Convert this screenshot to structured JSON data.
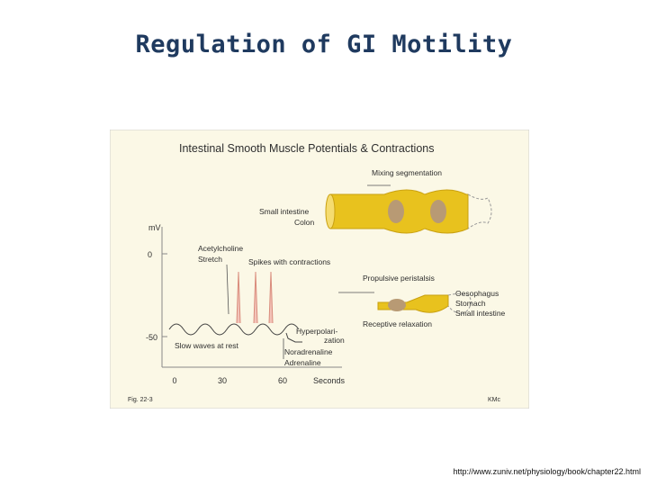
{
  "slide": {
    "title": "Regulation of GI Motility",
    "source_url": "http://www.zuniv.net/physiology/book/chapter22.html"
  },
  "figure": {
    "title": "Intestinal Smooth  Muscle Potentials & Contractions",
    "fig_label": "Fig. 22-3",
    "credit": "KMc",
    "y_axis_unit": "mV",
    "y_ticks": [
      "0",
      "-50"
    ],
    "x_ticks": [
      "0",
      "30",
      "60"
    ],
    "x_axis_label": "Seconds",
    "labels": {
      "acetylcholine": "Acetylcholine",
      "stretch": "Stretch",
      "spikes": "Spikes with contractions",
      "slow_waves": "Slow waves at rest",
      "hyperpolarization_1": "Hyperpolari-",
      "hyperpolarization_2": "zation",
      "noradrenaline": "Noradrenaline",
      "adrenaline": "Adrenaline",
      "mixing": "Mixing segmentation",
      "small_intestine": "Small intestine",
      "colon": "Colon",
      "propulsive": "Propulsive peristalsis",
      "oesophagus": "Oesophagus",
      "stomach": "Stomach",
      "small_intestine_2": "Small intestine",
      "receptive": "Receptive relaxation"
    },
    "colors": {
      "background": "#fbf8e6",
      "tube": "#e8c21e",
      "tube_dark": "#c9a010",
      "bolus": "#b89a74",
      "spike": "#e8a090"
    }
  }
}
